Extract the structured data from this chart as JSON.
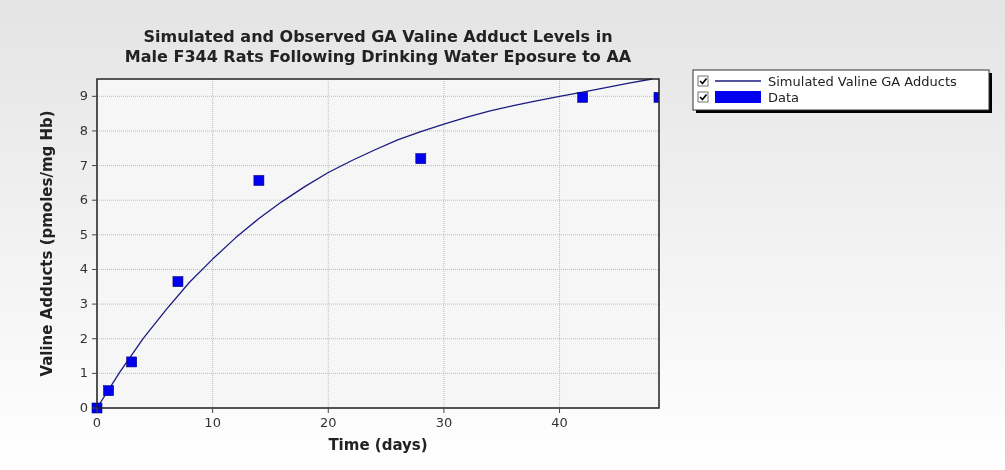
{
  "chart_data": {
    "type": "scatter",
    "title": "Simulated and Observed GA Valine Adduct Levels in\nMale F344 Rats Following Drinking Water Eposure to AA",
    "xlabel": "Time (days)",
    "ylabel": "Valine Adducts (pmoles/mg Hb)",
    "series": [
      {
        "name": "Simulated Valine GA Adducts",
        "type": "line",
        "color": "#1a1a80",
        "marker": "none",
        "x": [
          0,
          2,
          4,
          6,
          8,
          10,
          12,
          14,
          16,
          18,
          20,
          22,
          24,
          26,
          28,
          30,
          32,
          34,
          36,
          38,
          40,
          42,
          44,
          46,
          48
        ],
        "values": [
          0,
          1.05,
          2.01,
          2.85,
          3.63,
          4.3,
          4.92,
          5.47,
          5.96,
          6.4,
          6.8,
          7.14,
          7.45,
          7.74,
          7.98,
          8.2,
          8.4,
          8.58,
          8.73,
          8.87,
          9.0,
          9.12,
          9.25,
          9.38,
          9.5
        ]
      },
      {
        "name": "Data",
        "color": "#0000ee",
        "marker": "square",
        "x": [
          0,
          1,
          3,
          7,
          14,
          28,
          42,
          48.6
        ],
        "values": [
          0,
          0.5,
          1.33,
          3.65,
          6.57,
          7.2,
          8.97,
          8.97
        ]
      }
    ],
    "xlim": [
      0,
      48.6
    ],
    "ylim": [
      0,
      9.5
    ],
    "xticks": [
      0,
      10,
      20,
      30,
      40
    ],
    "yticks": [
      0,
      1,
      2,
      3,
      4,
      5,
      6,
      7,
      8,
      9
    ],
    "grid": true,
    "legend": "top right"
  }
}
